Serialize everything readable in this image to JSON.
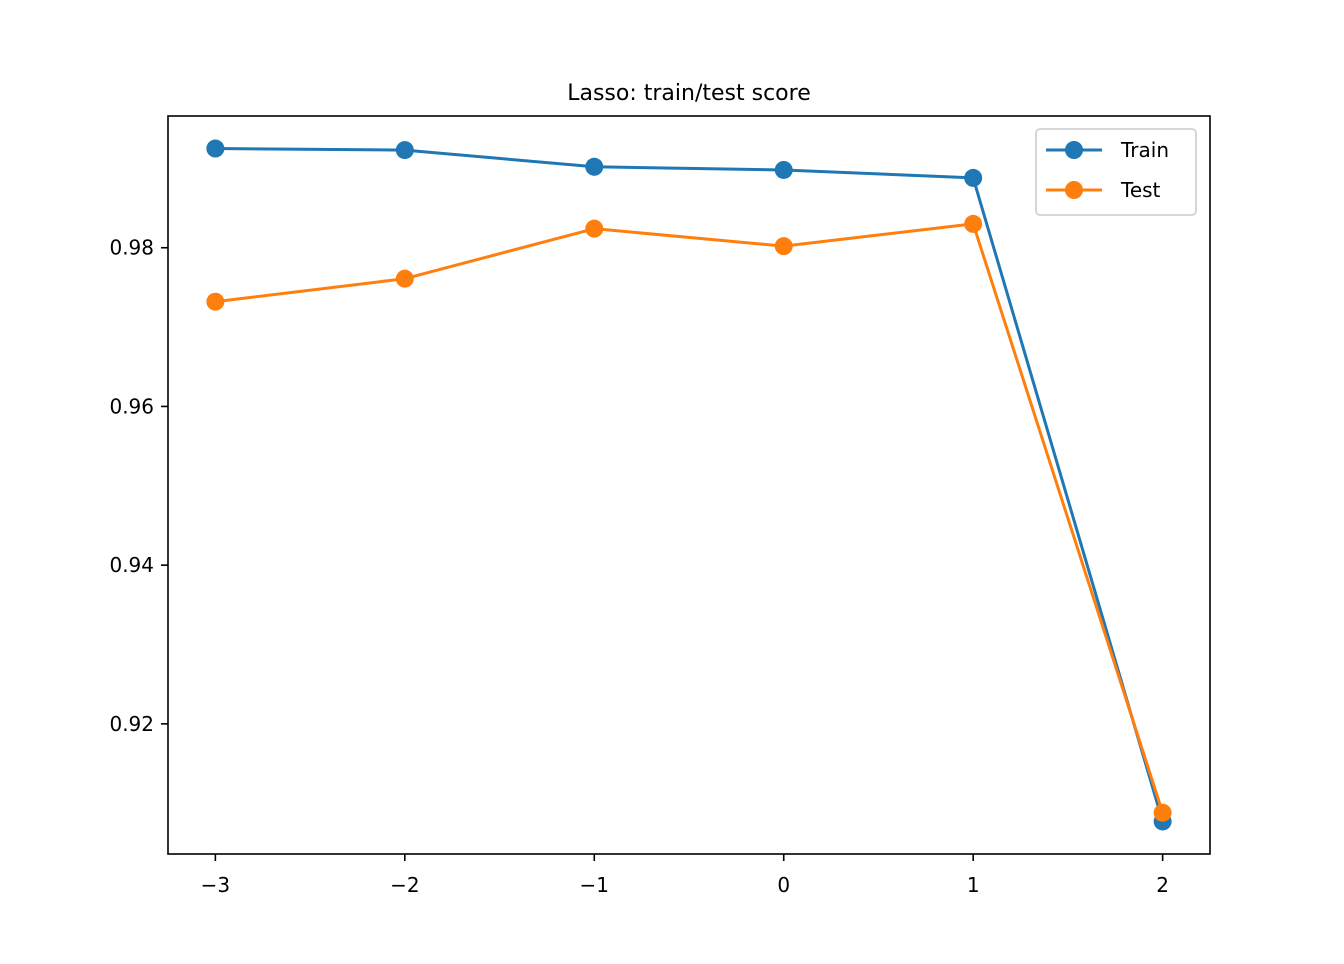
{
  "chart_data": {
    "type": "line",
    "title": "Lasso: train/test score",
    "xlabel": "",
    "ylabel": "",
    "x": [
      -3,
      -2,
      -1,
      0,
      1,
      2
    ],
    "xlim": [
      -3.25,
      2.25
    ],
    "ylim": [
      0.9036,
      0.9966
    ],
    "x_ticks": [
      -3,
      -2,
      -1,
      0,
      1,
      2
    ],
    "x_tick_labels": [
      "−3",
      "−2",
      "−1",
      "0",
      "1",
      "2"
    ],
    "y_ticks": [
      0.92,
      0.94,
      0.96,
      0.98
    ],
    "y_tick_labels": [
      "0.92",
      "0.94",
      "0.96",
      "0.98"
    ],
    "grid": false,
    "legend_position": "top-right",
    "series": [
      {
        "name": "Train",
        "color": "#1f77b4",
        "marker": "circle",
        "values": [
          0.9925,
          0.9923,
          0.9902,
          0.9898,
          0.9888,
          0.9077
        ]
      },
      {
        "name": "Test",
        "color": "#ff7f0e",
        "marker": "circle",
        "values": [
          0.9732,
          0.9761,
          0.9824,
          0.9802,
          0.983,
          0.9088
        ]
      }
    ]
  }
}
